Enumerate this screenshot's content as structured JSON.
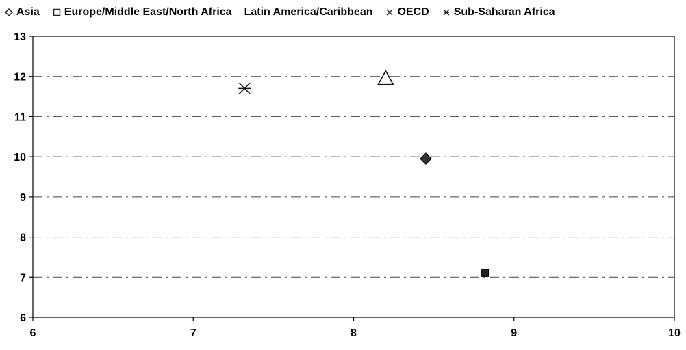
{
  "chart_data": {
    "type": "scatter",
    "title": "",
    "xlabel": "",
    "ylabel": "",
    "xlim": [
      6,
      10
    ],
    "ylim": [
      6,
      13
    ],
    "x_ticks": [
      "6",
      "7",
      "8",
      "9",
      "10"
    ],
    "y_ticks": [
      "6",
      "7",
      "8",
      "9",
      "10",
      "11",
      "12",
      "13"
    ],
    "grid": "horizontal dashed",
    "legend_placement": "top",
    "series": [
      {
        "name": "Asia",
        "marker": "diamond",
        "color": "#333333",
        "points": [
          [
            8.45,
            9.95
          ]
        ]
      },
      {
        "name": "Europe/Middle East/North Africa",
        "marker": "square",
        "color": "#222222",
        "points": [
          [
            8.82,
            7.1
          ]
        ]
      },
      {
        "name": "Latin America/Caribbean",
        "marker": "triangle",
        "color": "#222222",
        "points": [
          [
            8.2,
            11.95
          ]
        ]
      },
      {
        "name": "OECD",
        "marker": "x",
        "color": "#222222",
        "points": []
      },
      {
        "name": "Sub-Saharan Africa",
        "marker": "asterisk",
        "color": "#222222",
        "points": [
          [
            7.32,
            11.7
          ]
        ]
      }
    ]
  }
}
